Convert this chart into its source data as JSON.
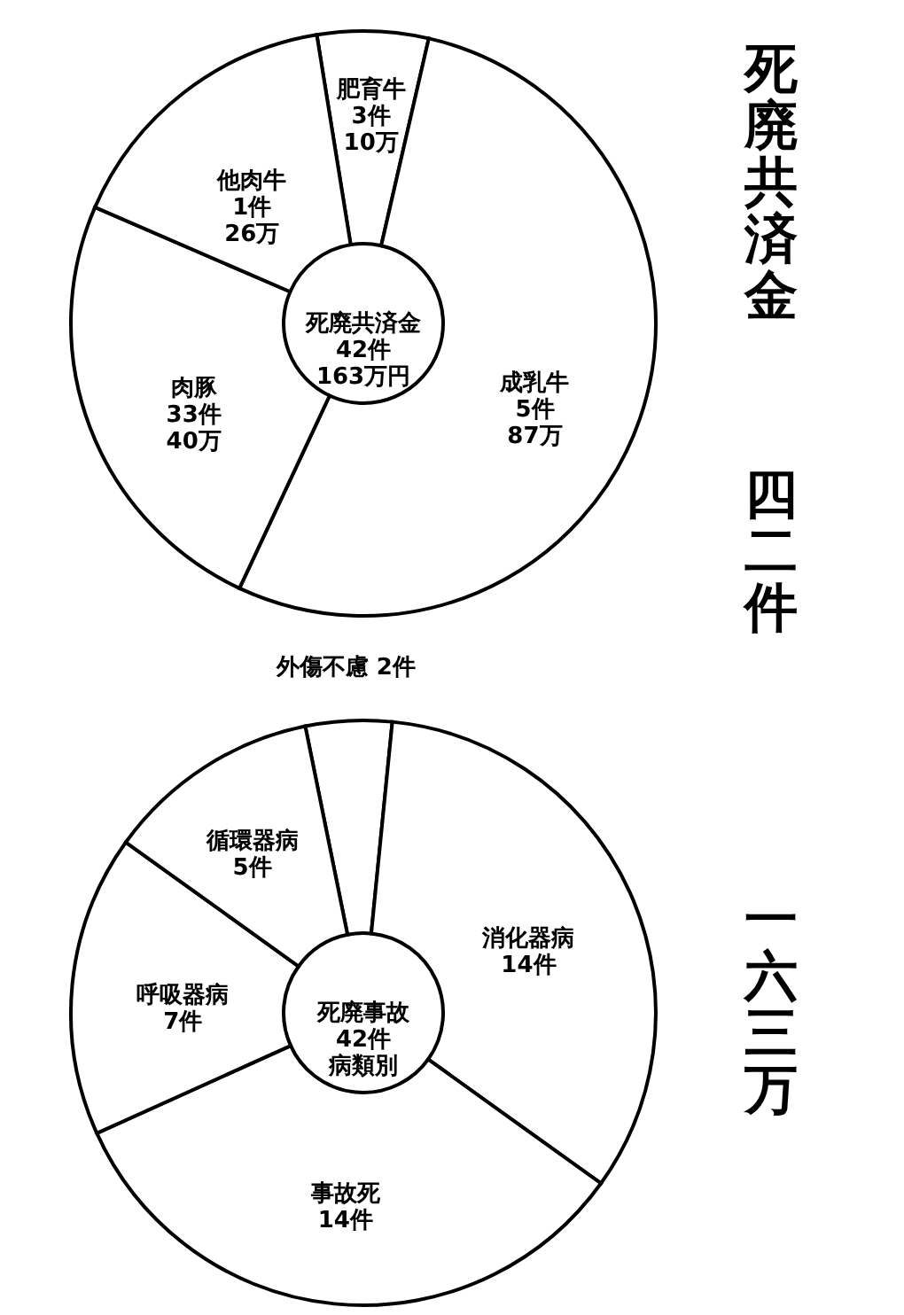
{
  "chart_data": [
    {
      "type": "donut",
      "categories": [
        "肥育牛",
        "成乳牛",
        "肉豚",
        "他肉牛"
      ],
      "values": [
        10,
        87,
        40,
        26
      ],
      "colors": [
        "#ffffff",
        "#ffffff",
        "#ffffff",
        "#ffffff"
      ],
      "value_labels": [
        "3件\n10万",
        "5件\n87万",
        "33件\n40万",
        "1件\n26万"
      ],
      "annotations": [
        "死廃共済金",
        "42件",
        "163万円"
      ]
    },
    {
      "type": "donut",
      "categories": [
        "外傷不慮",
        "消化器病",
        "事故死",
        "呼吸器病",
        "循環器病"
      ],
      "values": [
        2,
        14,
        14,
        7,
        5
      ],
      "colors": [
        "#ffffff",
        "#ffffff",
        "#ffffff",
        "#ffffff",
        "#ffffff"
      ],
      "value_labels": [
        "2件",
        "14件",
        "14件",
        "7件",
        "5件"
      ],
      "annotations": [
        "死廃事故",
        "42件",
        "病類別"
      ]
    },
    {
      "type": "other",
      "annotations": [
        "死廃共済金",
        "四二件",
        "一六三万"
      ]
    }
  ]
}
